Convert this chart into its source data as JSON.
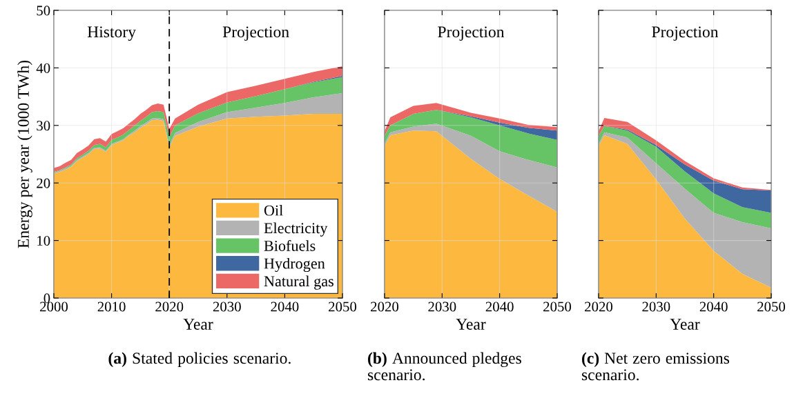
{
  "chart_data": [
    {
      "type": "area",
      "stacked": true,
      "title": "(a) Stated policies scenario.",
      "xlabel": "Year",
      "ylabel": "Energy per year (1000 TWh)",
      "x": [
        2000,
        2001,
        2002,
        2003,
        2004,
        2005,
        2006,
        2007,
        2008,
        2009,
        2010,
        2011,
        2012,
        2013,
        2014,
        2015,
        2016,
        2017,
        2018,
        2019,
        2020,
        2021,
        2025,
        2030,
        2035,
        2040,
        2045,
        2050
      ],
      "series": [
        {
          "name": "Oil",
          "color": "#fdb93f",
          "values": [
            21.6,
            21.9,
            22.3,
            22.8,
            23.8,
            24.4,
            25.0,
            25.9,
            26.0,
            25.4,
            26.6,
            27.0,
            27.4,
            28.2,
            28.8,
            29.6,
            30.2,
            30.9,
            31.0,
            30.8,
            26.2,
            28.2,
            29.8,
            31.2,
            31.5,
            31.7,
            32.0,
            32.0
          ]
        },
        {
          "name": "Electricity",
          "color": "#b3b3b3",
          "values": [
            0.2,
            0.2,
            0.2,
            0.2,
            0.2,
            0.2,
            0.2,
            0.2,
            0.2,
            0.2,
            0.2,
            0.2,
            0.2,
            0.2,
            0.3,
            0.3,
            0.3,
            0.3,
            0.3,
            0.3,
            0.4,
            0.5,
            0.8,
            1.1,
            1.6,
            2.2,
            2.9,
            3.6
          ]
        },
        {
          "name": "Biofuels",
          "color": "#66c466",
          "values": [
            0.1,
            0.1,
            0.2,
            0.2,
            0.3,
            0.3,
            0.4,
            0.5,
            0.6,
            0.6,
            0.7,
            0.7,
            0.8,
            0.8,
            0.9,
            0.9,
            1.0,
            1.1,
            1.2,
            1.2,
            1.4,
            1.3,
            1.5,
            1.7,
            2.0,
            2.4,
            2.6,
            2.8
          ]
        },
        {
          "name": "Hydrogen",
          "color": "#3f67a0",
          "values": [
            0,
            0,
            0,
            0,
            0,
            0,
            0,
            0,
            0,
            0,
            0,
            0,
            0,
            0,
            0,
            0,
            0,
            0,
            0,
            0,
            0,
            0,
            0,
            0,
            0,
            0,
            0.1,
            0.2
          ]
        },
        {
          "name": "Natural gas",
          "color": "#eb6867",
          "values": [
            0.7,
            0.7,
            0.8,
            0.8,
            0.9,
            0.9,
            0.9,
            1.0,
            1.0,
            1.0,
            1.0,
            1.1,
            1.1,
            1.1,
            1.1,
            1.2,
            1.2,
            1.2,
            1.3,
            1.3,
            1.4,
            1.2,
            1.5,
            1.8,
            1.8,
            1.8,
            1.7,
            1.7
          ]
        }
      ],
      "xlim": [
        2000,
        2050
      ],
      "xticks": [
        2000,
        2010,
        2020,
        2030,
        2040,
        2050
      ],
      "ylim": [
        0,
        50
      ],
      "yticks": [
        0,
        10,
        20,
        30,
        40,
        50
      ],
      "grid": true,
      "legend": "bottom right",
      "ref_lines": [
        {
          "axis": "x",
          "value": 2020,
          "color": "#000000",
          "line_style": "dashed"
        }
      ],
      "annotations": [
        "History",
        "Projection"
      ]
    },
    {
      "type": "area",
      "stacked": true,
      "title": "(b) Announced pledges scenario.",
      "xlabel": "Year",
      "x": [
        2020,
        2021,
        2025,
        2029,
        2035,
        2040,
        2045,
        2050
      ],
      "series": [
        {
          "color": "#fdb93f",
          "values": [
            26.4,
            28.3,
            29.1,
            29.0,
            24.2,
            20.7,
            17.8,
            15.0
          ]
        },
        {
          "color": "#b3b3b3",
          "values": [
            0.4,
            0.5,
            0.7,
            1.3,
            4.0,
            4.8,
            6.2,
            7.7
          ]
        },
        {
          "color": "#66c466",
          "values": [
            1.4,
            1.2,
            2.2,
            2.4,
            3.2,
            4.5,
            4.6,
            4.8
          ]
        },
        {
          "color": "#3f67a0",
          "values": [
            0,
            0,
            0,
            0,
            0.2,
            0.5,
            1.0,
            1.6
          ]
        },
        {
          "color": "#eb6867",
          "values": [
            0.8,
            1.4,
            1.4,
            1.2,
            0.6,
            0.7,
            0.5,
            0.6
          ]
        }
      ],
      "xlim": [
        2020,
        2050
      ],
      "xticks": [
        2020,
        2030,
        2040,
        2050
      ],
      "ylim": [
        0,
        50
      ],
      "yticks": [
        0,
        10,
        20,
        30,
        40,
        50
      ],
      "grid": true,
      "tick_labels": "x",
      "annotations": [
        "Projection"
      ]
    },
    {
      "type": "area",
      "stacked": true,
      "title": "(c) Net zero emissions scenario.",
      "xlabel": "Year",
      "x": [
        2020,
        2021,
        2025,
        2030,
        2035,
        2040,
        2045,
        2050
      ],
      "series": [
        {
          "color": "#fdb93f",
          "values": [
            26.4,
            28.3,
            26.8,
            20.6,
            13.8,
            8.2,
            4.2,
            1.8
          ]
        },
        {
          "color": "#b3b3b3",
          "values": [
            0.4,
            0.5,
            1.1,
            2.8,
            5.2,
            6.6,
            9.0,
            10.3
          ]
        },
        {
          "color": "#66c466",
          "values": [
            1.4,
            1.1,
            1.2,
            2.9,
            3.0,
            3.4,
            2.6,
            2.7
          ]
        },
        {
          "color": "#3f67a0",
          "values": [
            0,
            0,
            0.2,
            0.3,
            1.2,
            2.2,
            3.1,
            3.9
          ]
        },
        {
          "color": "#eb6867",
          "values": [
            0.8,
            1.4,
            1.3,
            0.8,
            0.6,
            0.4,
            0.3,
            0.1
          ]
        }
      ],
      "xlim": [
        2020,
        2050
      ],
      "xticks": [
        2020,
        2030,
        2040,
        2050
      ],
      "ylim": [
        0,
        50
      ],
      "yticks": [
        0,
        10,
        20,
        30,
        40,
        50
      ],
      "grid": true,
      "tick_labels": "x",
      "annotations": [
        "Projection"
      ]
    }
  ]
}
